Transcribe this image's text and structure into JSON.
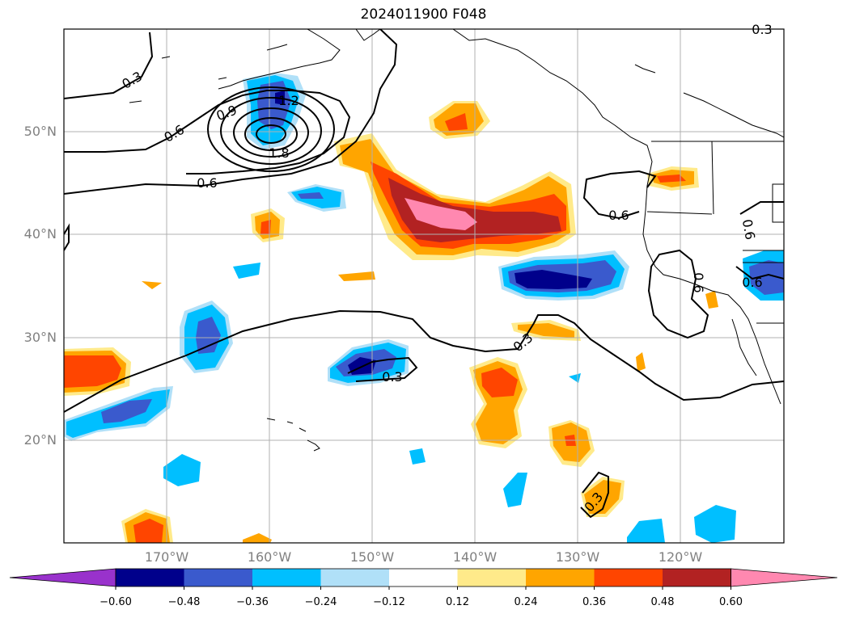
{
  "title": "2024011900 F048",
  "lat_labels": [
    "50°N",
    "40°N",
    "30°N",
    "20°N"
  ],
  "lon_labels": [
    "170°W",
    "160°W",
    "150°W",
    "140°W",
    "130°W",
    "120°W"
  ],
  "contour_labels": [
    "0.3",
    "0.6",
    "0.9",
    "1.2",
    "1.8",
    "0.6",
    "0.6",
    "0.6",
    "0.6",
    "0.3",
    "0.3",
    "0.3",
    "0.3",
    "0.6"
  ],
  "colorbar": {
    "ticks": [
      "−0.60",
      "−0.48",
      "−0.36",
      "−0.24",
      "−0.12",
      "0.12",
      "0.24",
      "0.36",
      "0.48",
      "0.60"
    ],
    "colors": [
      "#9932cc",
      "#00008b",
      "#3a5acd",
      "#00bfff",
      "#b0e0f8",
      "#ffffff",
      "#ffea8a",
      "#ffa500",
      "#ff4500",
      "#b22222",
      "#ff88b0"
    ]
  },
  "legend_colors": {
    "land_line": "#000000",
    "grid": "#b0b0b0"
  }
}
